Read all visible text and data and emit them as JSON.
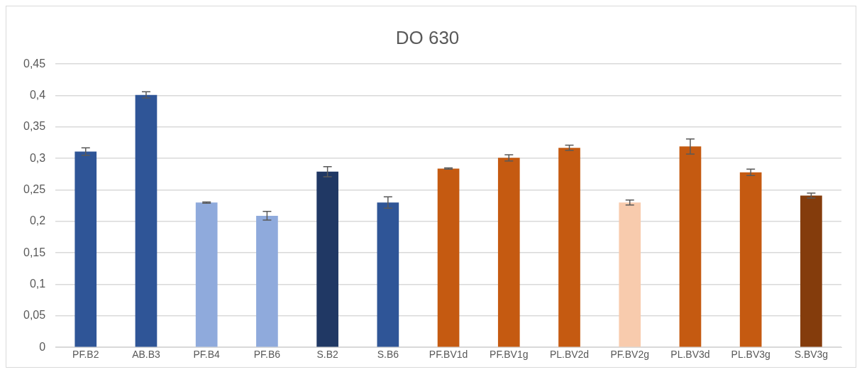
{
  "chart_data": {
    "type": "bar",
    "title": "DO 630",
    "categories": [
      "PF.B2",
      "AB.B3",
      "PF.B4",
      "PF.B6",
      "S.B2",
      "S.B6",
      "PF.BV1d",
      "PF.BV1g",
      "PL.BV2d",
      "PF.BV2g",
      "PL.BV3d",
      "PL.BV3g",
      "S.BV3g"
    ],
    "values": [
      0.311,
      0.401,
      0.23,
      0.209,
      0.279,
      0.23,
      0.284,
      0.301,
      0.317,
      0.23,
      0.319,
      0.278,
      0.241
    ],
    "errors": [
      0.006,
      0.005,
      0.001,
      0.007,
      0.008,
      0.009,
      0.001,
      0.005,
      0.004,
      0.004,
      0.012,
      0.005,
      0.004
    ],
    "colors": [
      "#2f5597",
      "#2f5597",
      "#8faadc",
      "#8faadc",
      "#203864",
      "#2f5597",
      "#c55a11",
      "#c55a11",
      "#c55a11",
      "#f8cbad",
      "#c55a11",
      "#c55a11",
      "#843c0c"
    ],
    "ylim": [
      0,
      0.45
    ],
    "yticks": [
      0,
      {
        "value": 0.05,
        "label": "0,05"
      },
      {
        "value": 0.1,
        "label": "0,1"
      },
      {
        "value": 0.15,
        "label": "0,15"
      },
      {
        "value": 0.2,
        "label": "0,2"
      },
      {
        "value": 0.25,
        "label": "0,25"
      },
      {
        "value": 0.3,
        "label": "0,3"
      },
      {
        "value": 0.35,
        "label": "0,35"
      },
      {
        "value": 0.4,
        "label": "0,4"
      },
      {
        "value": 0.45,
        "label": "0,45"
      }
    ],
    "grid": "y",
    "legend": false
  }
}
